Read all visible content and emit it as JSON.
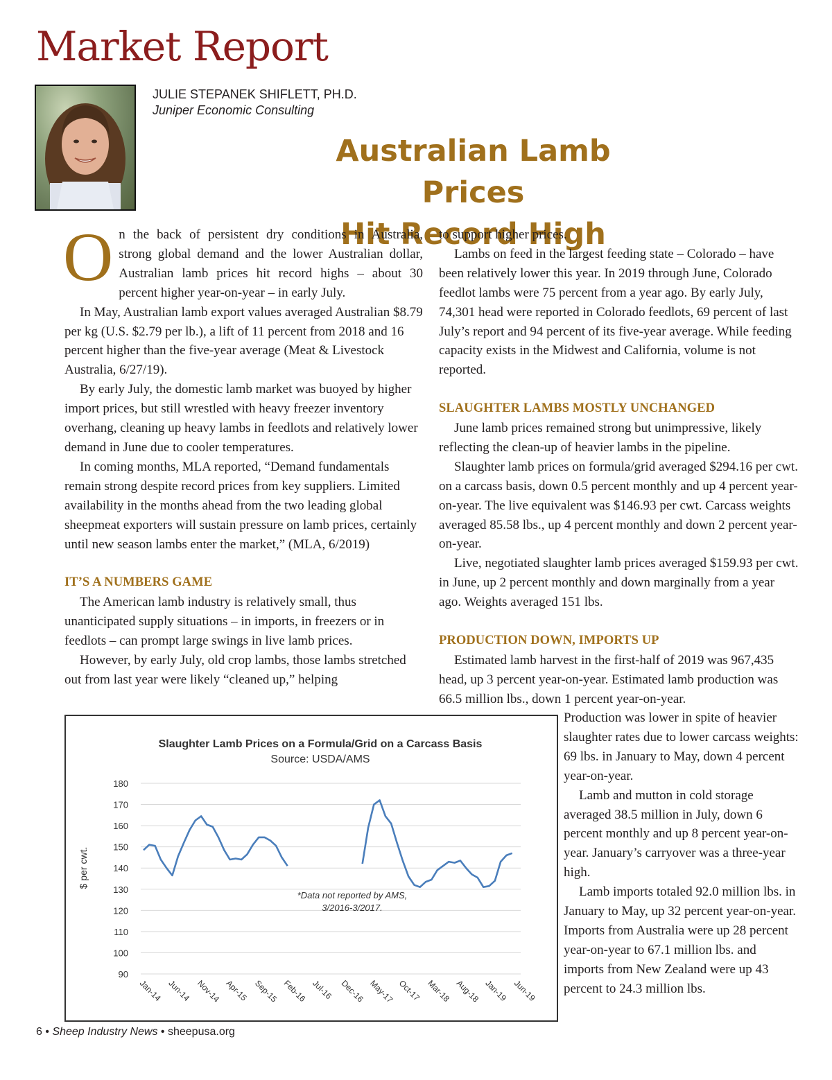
{
  "masthead": "Market Report",
  "author": {
    "name": "JULIE STEPANEK SHIFLETT, PH.D.",
    "organization": "Juniper Economic Consulting"
  },
  "headline": {
    "line1": "Australian Lamb Prices",
    "line2": "Hit Record High"
  },
  "article": {
    "dropcap": "O",
    "left": {
      "p1": "n the back of persistent dry conditions in Australia, strong global demand and the lower Australian dollar, Australian lamb prices hit record highs – about 30 percent higher year-on-year – in early July.",
      "p2": "In May, Australian lamb export values averaged Australian $8.79 per kg (U.S. $2.79 per lb.), a lift of 11 percent from 2018 and 16 percent higher than the five-year average (Meat & Livestock Australia, 6/27/19).",
      "p3": "By early July, the domestic lamb market was buoyed by higher import prices, but still wrestled with heavy freezer inventory overhang, cleaning up heavy lambs in feedlots and relatively lower demand in June due to cooler temperatures.",
      "p4": "In coming months, MLA reported, “Demand fundamentals remain strong despite record prices from key suppliers. Limited availability in the months ahead from the two leading global sheepmeat exporters will sustain pressure on lamb prices, certainly until new season lambs enter the market,” (MLA, 6/2019)",
      "h1": "IT’S A NUMBERS GAME",
      "p5": "The American lamb industry is relatively small, thus unanticipated supply situations – in imports, in freezers or in feedlots – can prompt large swings in live lamb prices.",
      "p6": "However, by early July, old crop lambs, those lambs stretched out from last year were likely “cleaned up,” helping"
    },
    "right": {
      "p1": "to support higher prices.",
      "p2": "Lambs on feed in the largest feeding state – Colorado – have been relatively lower this year. In 2019 through June, Colorado feedlot lambs were 75 percent from a year ago. By early July, 74,301 head were reported in Colorado feedlots, 69 percent of last July’s report and 94 percent of its five-year average. While feeding capacity exists in the Midwest and California, volume is not reported.",
      "h1": "SLAUGHTER LAMBS MOSTLY UNCHANGED",
      "p3": "June lamb prices remained strong but unimpressive, likely reflecting the clean-up of heavier lambs in the pipeline.",
      "p4": "Slaughter lamb prices on formula/grid averaged $294.16 per cwt. on a carcass basis, down 0.5 percent monthly and up 4 percent year-on-year. The live equivalent was $146.93 per cwt. Carcass weights averaged 85.58 lbs., up 4 percent monthly and down 2 percent year-on-year.",
      "p5": "Live, negotiated slaughter lamb prices averaged $159.93 per cwt. in June, up 2 percent monthly and down marginally from a year ago. Weights averaged 151 lbs.",
      "h2": "PRODUCTION DOWN, IMPORTS UP",
      "p6": "Estimated lamb harvest in the first-half of 2019 was 967,435 head, up 3 percent year-on-year. Estimated lamb production was 66.5 million lbs., down 1 percent year-on-year."
    },
    "side": {
      "p1": "Production was lower in spite of heavier slaughter rates due to lower carcass weights: 69 lbs. in January to May, down 4 percent year-on-year.",
      "p2": "Lamb and mutton in cold storage averaged 38.5 million in July, down 6 percent monthly and up 8 percent year-on-year. January’s carryover was a three-year high.",
      "p3": "Lamb imports totaled 92.0 million lbs. in January to May, up 32 percent year-on-year. Imports from Australia were up 28 percent year-on-year to 67.1 million lbs. and imports from New Zealand were up 43 percent to 24.3 million lbs."
    }
  },
  "chart_data": {
    "type": "line",
    "title": "Slaughter Lamb Prices on a Formula/Grid on a Carcass Basis",
    "subtitle": "Source: USDA/AMS",
    "ylabel": "$ per cwt.",
    "xlabel": "",
    "ylim": [
      90,
      180
    ],
    "yticks": [
      "180",
      "170",
      "160",
      "150",
      "140",
      "130",
      "120",
      "110",
      "100",
      "90"
    ],
    "xticks": [
      "Jan-14",
      "Jun-14",
      "Nov-14",
      "Apr-15",
      "Sep-15",
      "Feb-16",
      "Jul-16",
      "Dec-16",
      "May-17",
      "Oct-17",
      "Mar-18",
      "Aug-18",
      "Jan-19",
      "Jun-19"
    ],
    "annotation": [
      "*Data not reported by AMS,",
      "3/2016-3/2017."
    ],
    "grid": true,
    "legend": "none",
    "series": [
      {
        "color": "#4a7ebb",
        "segments": [
          [
            148.5,
            151,
            150.5,
            144,
            140,
            136.5,
            145.5,
            152,
            158,
            162.5,
            164.5,
            160.5,
            159.5,
            154.5,
            148.5,
            144,
            144.5,
            144,
            146.5,
            151,
            154.5,
            154.5,
            153,
            150.5,
            145,
            141
          ],
          [
            142,
            159,
            170,
            172,
            164.5,
            161,
            152,
            143.5,
            136,
            132,
            131,
            133.5,
            134.5,
            139,
            141,
            143,
            142.5,
            143.5,
            140,
            137,
            135.5,
            131,
            131.5,
            134,
            143,
            146,
            147
          ]
        ],
        "segment_start_index": [
          0,
          38
        ]
      }
    ],
    "colors": {
      "line": "#4a7ebb",
      "grid": "#d9d9d9"
    }
  },
  "footer": {
    "page": "6",
    "publication": "Sheep Industry News",
    "site": "sheepusa.org"
  },
  "colors": {
    "masthead": "#8b1d1d",
    "accent": "#a0701c"
  }
}
